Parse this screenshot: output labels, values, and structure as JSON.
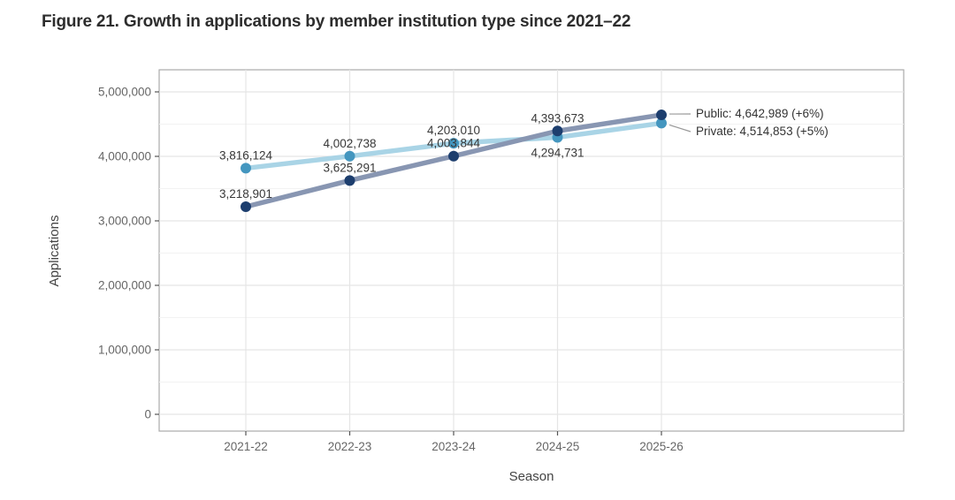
{
  "figure": {
    "title": "Figure 21. Growth in applications by member institution type since 2021–22"
  },
  "chart_data": {
    "type": "line",
    "title": "Figure 21. Growth in applications by member institution type since 2021–22",
    "xlabel": "Season",
    "ylabel": "Applications",
    "categories": [
      "2021-22",
      "2022-23",
      "2023-24",
      "2024-25",
      "2025-26"
    ],
    "series": [
      {
        "name": "Private",
        "values": [
          3816124,
          4002738,
          4203010,
          4294731,
          4514853
        ],
        "growth_note": "+5%",
        "line_color": "#a9d4e6",
        "dot_color": "#4496bf",
        "label_placement": [
          "above",
          "above",
          "above",
          "below",
          "annotation"
        ]
      },
      {
        "name": "Public",
        "values": [
          3218901,
          3625291,
          4003844,
          4393673,
          4642989
        ],
        "growth_note": "+6%",
        "line_color": "#8896b2",
        "dot_color": "#1d3e6e",
        "label_placement": [
          "above",
          "above",
          "above",
          "above",
          "annotation"
        ]
      }
    ],
    "annotations": [
      "Public: 4,642,989 (+6%)",
      "Private: 4,514,853 (+5%)"
    ],
    "ylim": [
      0,
      5000000
    ],
    "yticks": [
      0,
      1000000,
      2000000,
      3000000,
      4000000,
      5000000
    ],
    "ytick_labels": [
      "0",
      "1,000,000",
      "2,000,000",
      "3,000,000",
      "4,000,000",
      "5,000,000"
    ],
    "grid": "major horizontal and vertical gridlines, minor horizontal gridlines every 500,000",
    "legend_position": "end-of-line annotations at right",
    "colors": {
      "panel_border": "#ababab",
      "major_grid": "#e5e5e5",
      "minor_grid": "#f2f2f2",
      "tick_text": "#666666",
      "data_label_text": "#383838",
      "leader_line": "#999999"
    }
  }
}
